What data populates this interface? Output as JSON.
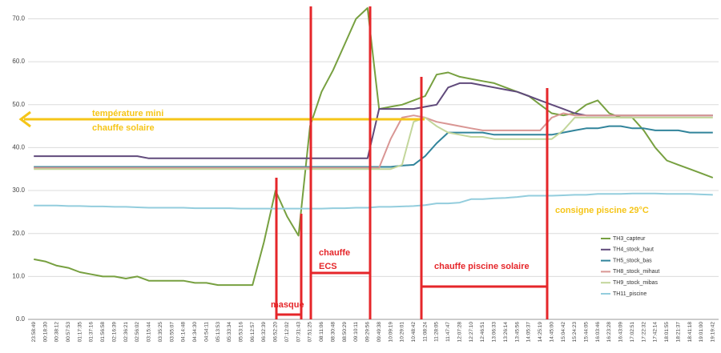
{
  "chart_data": {
    "type": "line",
    "categories": [
      "23:58:49",
      "00:18:30",
      "00:38:12",
      "00:57:53",
      "01:17:35",
      "01:37:16",
      "01:56:58",
      "02:16:39",
      "02:36:21",
      "02:56:02",
      "03:15:44",
      "03:35:25",
      "03:55:07",
      "04:14:48",
      "04:34:30",
      "04:54:11",
      "05:13:53",
      "05:33:34",
      "05:53:16",
      "06:12:57",
      "06:32:39",
      "06:52:20",
      "07:12:02",
      "07:31:43",
      "07:51:25",
      "08:11:06",
      "08:30:48",
      "08:50:29",
      "09:10:11",
      "09:29:56",
      "09:49:38",
      "10:09:19",
      "10:29:01",
      "10:48:42",
      "11:08:24",
      "11:28:05",
      "11:47:47",
      "12:07:28",
      "12:27:10",
      "12:46:51",
      "13:06:33",
      "13:26:14",
      "13:45:56",
      "14:05:37",
      "14:25:19",
      "14:45:00",
      "15:04:42",
      "15:24:23",
      "15:44:05",
      "16:03:46",
      "16:23:28",
      "16:43:09",
      "17:02:51",
      "17:22:32",
      "17:42:14",
      "18:01:55",
      "18:21:37",
      "18:41:18",
      "19:01:00",
      "19:19:42"
    ],
    "series": [
      {
        "name": "TH3_capteur",
        "color": "#77a040",
        "values": [
          14,
          13.5,
          12.5,
          12,
          11,
          10.5,
          10,
          10,
          9.5,
          10,
          9,
          9,
          9,
          9,
          8.5,
          8.5,
          8,
          8,
          8,
          8,
          18,
          30,
          24,
          19.5,
          45,
          53,
          58,
          64,
          70,
          72.5,
          49,
          49.5,
          50,
          51,
          52,
          57,
          57.5,
          56.5,
          56,
          55.5,
          55,
          54,
          53,
          52,
          50,
          48,
          47.5,
          48,
          50,
          51,
          48,
          47,
          47,
          44,
          40,
          37,
          36,
          35,
          34,
          33
        ]
      },
      {
        "name": "TH4_stock_haut",
        "color": "#604a7b",
        "values": [
          38,
          38,
          38,
          38,
          38,
          38,
          38,
          38,
          38,
          38,
          37.5,
          37.5,
          37.5,
          37.5,
          37.5,
          37.5,
          37.5,
          37.5,
          37.5,
          37.5,
          37.5,
          37.5,
          37.5,
          37.5,
          37.5,
          37.5,
          37.5,
          37.5,
          37.5,
          37.5,
          49,
          49,
          49,
          49,
          49.5,
          50,
          54,
          55,
          55,
          54.5,
          54,
          53.5,
          53,
          52,
          51,
          50,
          49,
          48,
          47.5,
          47.5,
          47.5,
          47.5,
          47.5,
          47.5,
          47.5,
          47.5,
          47.5,
          47.5,
          47.5,
          47.5
        ]
      },
      {
        "name": "TH5_stock_bas",
        "color": "#31849b",
        "values": [
          35.5,
          35.5,
          35.5,
          35.5,
          35.5,
          35.5,
          35.5,
          35.5,
          35.5,
          35.5,
          35.5,
          35.5,
          35.5,
          35.5,
          35.5,
          35.5,
          35.5,
          35.5,
          35.5,
          35.5,
          35.5,
          35.5,
          35.5,
          35.5,
          35.5,
          35.5,
          35.5,
          35.5,
          35.5,
          35.5,
          35.5,
          35.5,
          35.8,
          36,
          38,
          41,
          43.5,
          43.5,
          43.5,
          43.5,
          43,
          43,
          43,
          43,
          43,
          43,
          43.5,
          44,
          44.5,
          44.5,
          45,
          45,
          44.5,
          44.5,
          44,
          44,
          44,
          43.5,
          43.5,
          43.5
        ]
      },
      {
        "name": "TH8_stock_mihaut",
        "color": "#d99694",
        "values": [
          35.3,
          35.3,
          35.3,
          35.3,
          35.3,
          35.3,
          35.3,
          35.3,
          35.3,
          35.3,
          35.3,
          35.3,
          35.3,
          35.3,
          35.3,
          35.3,
          35.3,
          35.3,
          35.3,
          35.3,
          35.3,
          35.3,
          35.3,
          35.3,
          35.3,
          35.3,
          35.3,
          35.3,
          35.3,
          35.3,
          35.3,
          42,
          47,
          47.5,
          47,
          46,
          45.5,
          45,
          44.5,
          44,
          44,
          44,
          44,
          44,
          44,
          47,
          48,
          47.5,
          47.5,
          47.5,
          47.5,
          47.5,
          47.5,
          47.5,
          47.5,
          47.5,
          47.5,
          47.5,
          47.5,
          47.5
        ]
      },
      {
        "name": "TH9_stock_mibas",
        "color": "#c3d69b",
        "values": [
          35,
          35,
          35,
          35,
          35,
          35,
          35,
          35,
          35,
          35,
          35,
          35,
          35,
          35,
          35,
          35,
          35,
          35,
          35,
          35,
          35,
          35,
          35,
          35,
          35,
          35,
          35,
          35,
          35,
          35,
          35,
          35,
          36,
          46,
          47,
          45,
          43.5,
          43,
          42.5,
          42.5,
          42,
          42,
          42,
          42,
          42,
          42,
          44,
          47,
          47,
          47,
          47,
          47,
          47,
          47,
          47,
          47,
          47,
          47,
          47,
          47
        ]
      },
      {
        "name": "TH11_piscine",
        "color": "#93cddd",
        "values": [
          26.5,
          26.5,
          26.5,
          26.4,
          26.4,
          26.3,
          26.3,
          26.2,
          26.2,
          26.1,
          26,
          26,
          26,
          26,
          25.9,
          25.9,
          25.9,
          25.9,
          25.8,
          25.8,
          25.8,
          25.8,
          25.8,
          25.8,
          25.8,
          25.8,
          25.9,
          25.9,
          26,
          26,
          26.2,
          26.2,
          26.3,
          26.4,
          26.6,
          27,
          27,
          27.2,
          28,
          28,
          28.2,
          28.3,
          28.5,
          28.8,
          28.8,
          28.8,
          28.9,
          29,
          29,
          29.2,
          29.2,
          29.2,
          29.3,
          29.3,
          29.3,
          29.2,
          29.2,
          29.2,
          29.1,
          29
        ]
      }
    ],
    "ylim": [
      0,
      74
    ],
    "yticks": [
      {
        "value": 0,
        "label": "0.0"
      },
      {
        "value": 10,
        "label": "10.0"
      },
      {
        "value": 20,
        "label": "20.0"
      },
      {
        "value": 30,
        "label": "30.0"
      },
      {
        "value": 40,
        "label": "40.0"
      },
      {
        "value": 50,
        "label": "50.0"
      },
      {
        "value": 60,
        "label": "60.0"
      },
      {
        "value": 70,
        "label": "70.0"
      }
    ],
    "grid": true,
    "legend": "right",
    "annotations": [
      "température mini",
      "chauffe solaire",
      "consigne piscine 29°C",
      "chauffe",
      "ECS",
      "chauffe piscine solaire",
      "masque"
    ]
  }
}
